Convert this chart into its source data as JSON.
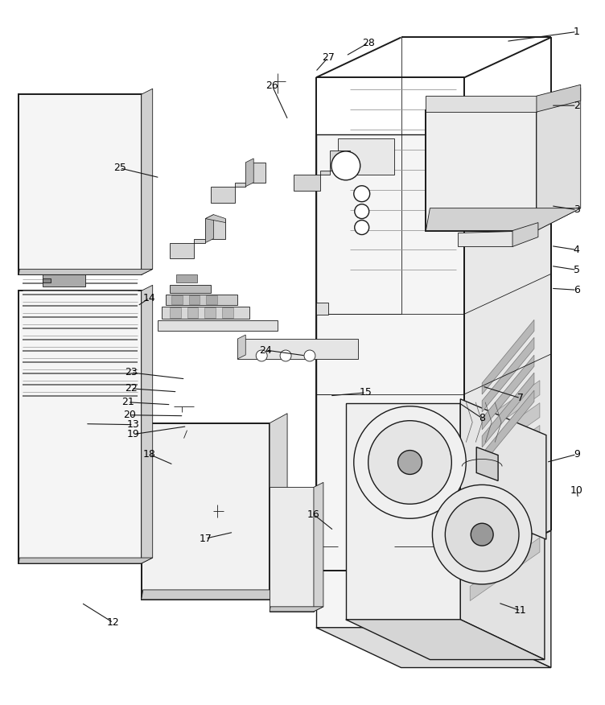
{
  "background_color": "#ffffff",
  "line_color": "#1a1a1a",
  "label_color": "#000000",
  "figure_width": 7.52,
  "figure_height": 8.76,
  "dpi": 100
}
